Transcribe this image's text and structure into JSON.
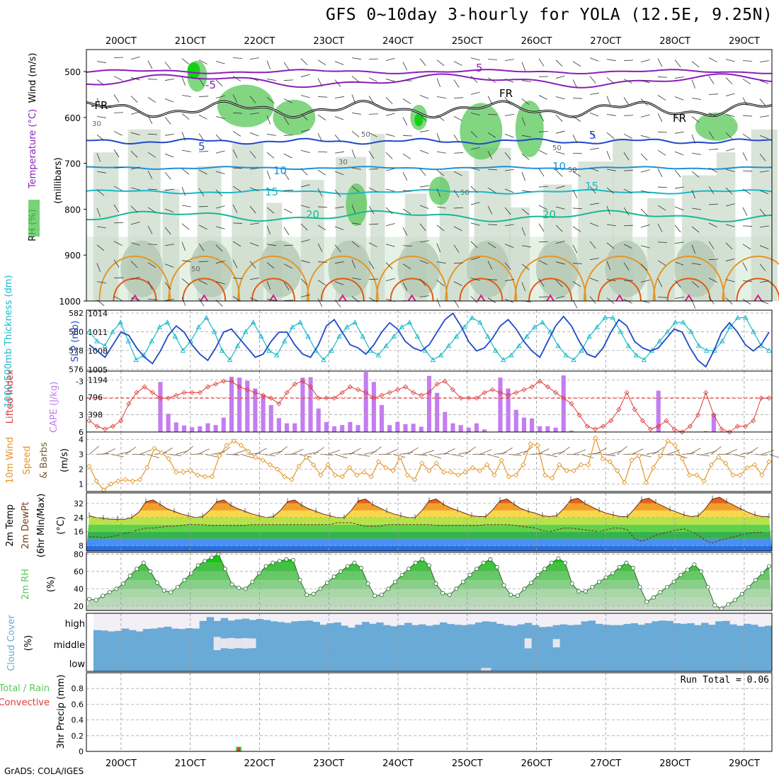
{
  "title": "GFS 0~10day 3-hourly for YOLA (12.5E, 9.25N)",
  "credit": "GrADS: COLA/IGES",
  "colors": {
    "purple": "#8a1fb8",
    "black": "#000000",
    "blue": "#1f48c8",
    "lightblue": "#1e90d8",
    "cyan": "#19b8c8",
    "teal": "#19b896",
    "orange": "#e3962a",
    "darkorange": "#e05a10",
    "magenta": "#d81a8a",
    "rhgreen": "#58c858",
    "cloud": "#6aaad6",
    "red": "#e03a3a"
  },
  "chart_data": [
    {
      "type": "contour",
      "panel": "upper-air",
      "ylabel": "(millibars)",
      "ylabel_parts": {
        "rh": "RH (%)",
        "temp": "Temperature (°C)",
        "wind": "Wind (m/s)"
      },
      "xlabels": [
        "20OCT",
        "21OCT",
        "22OCT",
        "23OCT",
        "24OCT",
        "25OCT",
        "26OCT",
        "27OCT",
        "28OCT",
        "29OCT"
      ],
      "yticks": [
        500,
        600,
        700,
        800,
        900,
        1000
      ],
      "series": [
        {
          "name": "5",
          "color": "purple",
          "level_mb": 500
        },
        {
          "name": "-5",
          "color": "purple",
          "level_mb": 520
        },
        {
          "name": "FR",
          "color": "black",
          "level_mb": 582
        },
        {
          "name": "5",
          "color": "blue",
          "level_mb": 652
        },
        {
          "name": "10",
          "color": "lightblue",
          "level_mb": 710
        },
        {
          "name": "15",
          "color": "cyan",
          "level_mb": 762
        },
        {
          "name": "20",
          "color": "teal",
          "level_mb": 815
        }
      ],
      "rh_labels": [
        "30",
        "50",
        "50",
        "50",
        "50",
        "50",
        "30"
      ]
    },
    {
      "type": "line",
      "panel": "thickness-slp",
      "ylabel_left": "1000-500mb Thickness (dm)",
      "ylabel_right": "SLP (mb)",
      "yticks_left": [
        576,
        578,
        580,
        582
      ],
      "yticks_right": [
        1005,
        1008,
        1011,
        1014
      ],
      "x": [
        "20OCT",
        "21OCT",
        "22OCT",
        "23OCT",
        "24OCT",
        "25OCT",
        "26OCT",
        "27OCT",
        "28OCT",
        "29OCT"
      ],
      "thickness_dm": [
        580,
        579,
        578.5,
        580,
        581,
        579,
        577,
        577.5,
        579,
        580.5,
        581,
        579.5,
        578,
        579,
        580.5,
        581.5,
        580,
        578,
        577,
        578.5,
        580,
        581,
        579.5,
        578,
        577.5,
        579,
        580.5,
        581,
        579.5,
        578,
        577,
        578,
        579.5,
        580.5,
        581,
        579.5,
        578,
        577.5,
        578.5,
        579.5,
        580.5,
        581,
        579.5,
        578,
        577,
        577.5,
        578.5,
        579.5,
        580.5,
        581.5,
        581,
        579.5,
        578,
        577,
        577.5,
        578.5,
        579.5,
        580.5,
        581,
        580,
        578.5,
        577.5,
        577,
        578,
        579.5,
        580.5,
        581.5,
        581.5,
        580,
        578.5,
        577.5,
        577,
        578,
        579,
        580,
        581,
        581,
        580,
        578.5,
        578,
        578,
        579,
        580.5,
        581.5,
        581.5,
        580,
        578.5,
        578
      ],
      "slp_mb": [
        1009,
        1008,
        1007,
        1009,
        1011,
        1010.5,
        1008.5,
        1007,
        1006,
        1008,
        1010.5,
        1012,
        1011,
        1009,
        1007.5,
        1006.5,
        1008.5,
        1011,
        1011.5,
        1010,
        1008.5,
        1007,
        1007.5,
        1009.5,
        1011,
        1011,
        1009,
        1007.5,
        1007,
        1009,
        1012,
        1013,
        1011,
        1009,
        1008.5,
        1007.5,
        1009,
        1011,
        1012.5,
        1011.5,
        1009.5,
        1008.5,
        1008,
        1009,
        1011,
        1013,
        1014,
        1012,
        1009.5,
        1008,
        1008.5,
        1010,
        1012,
        1013,
        1011.5,
        1009.5,
        1008,
        1007,
        1009.5,
        1012,
        1013.5,
        1012,
        1009.5,
        1007.5,
        1007,
        1008.5,
        1011,
        1013,
        1012,
        1009.5,
        1008.5,
        1008,
        1008.5,
        1010,
        1011.5,
        1011,
        1008.5,
        1006.5,
        1005.5,
        1008,
        1011,
        1012.5,
        1011,
        1009,
        1008,
        1009,
        1011
      ]
    },
    {
      "type": "bar",
      "panel": "cape-li",
      "ylabel_left": "Lifted Index",
      "ylabel_right": "CAPE (J/kg)",
      "yticks_left": [
        "-3",
        "0",
        "3",
        "6"
      ],
      "yticks_right": [
        398,
        796,
        1194
      ],
      "cape": [
        0,
        0,
        0,
        0,
        0,
        0,
        0,
        0,
        0,
        1150,
        420,
        220,
        150,
        110,
        130,
        200,
        160,
        330,
        1270,
        1250,
        1180,
        1000,
        860,
        620,
        320,
        200,
        200,
        1250,
        1260,
        540,
        230,
        130,
        160,
        230,
        160,
        1380,
        1150,
        620,
        160,
        230,
        180,
        190,
        120,
        1290,
        900,
        460,
        200,
        160,
        100,
        200,
        60,
        0,
        1250,
        1000,
        510,
        330,
        310,
        130,
        130,
        100,
        1300,
        30,
        0,
        0,
        0,
        0,
        0,
        0,
        0,
        0,
        0,
        0,
        950,
        0,
        0,
        0,
        0,
        0,
        20,
        420,
        0,
        0,
        0,
        0,
        0,
        0,
        0
      ],
      "lifted_index": [
        4,
        5,
        5.5,
        5,
        4,
        1,
        -1,
        -2,
        -1,
        0,
        0,
        -0.5,
        -1,
        -1,
        -1,
        -2,
        -2.5,
        -3,
        -3,
        -2,
        -1.5,
        -1,
        -0.5,
        0,
        1,
        -1,
        -2.5,
        -3,
        -2,
        0,
        0,
        0,
        -1,
        -2,
        -1.5,
        -1,
        0,
        -0.5,
        -1,
        -1.5,
        -2,
        -1,
        -0.5,
        -1,
        -2.5,
        -3,
        -1.5,
        0,
        0,
        0,
        -1,
        -1.5,
        -1,
        -0.5,
        -1,
        -1.5,
        -2,
        -3,
        -2,
        -1,
        0,
        1,
        3,
        5,
        5.5,
        5,
        4,
        2,
        -1,
        2,
        4,
        5.5,
        5,
        4,
        5.5,
        6,
        5,
        3,
        -1,
        3,
        5.5,
        6,
        5,
        5,
        4,
        0,
        0
      ]
    },
    {
      "type": "line",
      "panel": "wind10m",
      "ylabel": "10m Wind Speed & Barbs (m/s)",
      "yticks": [
        1,
        2,
        3,
        4
      ],
      "speed": [
        2.2,
        1.2,
        0.6,
        1,
        1.2,
        1.3,
        1.2,
        1.3,
        2.1,
        3.4,
        3.1,
        2.7,
        1.8,
        1.8,
        1.9,
        1.6,
        1.5,
        1.5,
        2.9,
        3.6,
        3.9,
        3.6,
        3.2,
        2.8,
        2.6,
        2.3,
        2,
        1.5,
        1.3,
        2.2,
        2.8,
        2.3,
        1.6,
        2.3,
        1.6,
        1.5,
        2.1,
        1.6,
        1.8,
        1.5,
        2.5,
        2.1,
        1.9,
        2.8,
        1.6,
        1.3,
        2.4,
        1.9,
        2.4,
        1.8,
        1.8,
        1.6,
        1.8,
        2.1,
        1.9,
        2.3,
        1.6,
        2.6,
        1.5,
        1.6,
        2.3,
        3.7,
        3.6,
        1.6,
        1.4,
        2.3,
        1.9,
        1.9,
        2.3,
        2.3,
        4.1,
        2.7,
        2.5,
        1.9,
        1.1,
        2.6,
        2.9,
        1.1,
        2.1,
        2.9,
        3.9,
        3.6,
        2.7,
        1.6,
        1.6,
        1.2,
        2.3,
        2.8,
        2.4,
        1.6,
        1.6,
        2.1,
        2.3,
        1.6,
        2.5
      ]
    },
    {
      "type": "area",
      "panel": "temp2m",
      "ylabel": "2m Temp 2m DewPt (6hr Min/Max) (°C)",
      "yticks": [
        8,
        16,
        24,
        32
      ],
      "temp": [
        25,
        24,
        23.5,
        23,
        23,
        23,
        24,
        27,
        33,
        34,
        31.5,
        29,
        27.5,
        26,
        25,
        24,
        24.5,
        28,
        33,
        34,
        31,
        29,
        27.5,
        26,
        25,
        24,
        24.5,
        28,
        33,
        34,
        31,
        29,
        27.5,
        26,
        25,
        24,
        24,
        28,
        33.5,
        34.5,
        31.5,
        29.5,
        27.5,
        26,
        25,
        24,
        24,
        28,
        33.5,
        34.5,
        31.5,
        29.5,
        28,
        26.5,
        25,
        24.5,
        24.5,
        28.5,
        33.5,
        34.5,
        31.5,
        29,
        27.5,
        26.5,
        25,
        24.5,
        25,
        29,
        34,
        35,
        32,
        30,
        28,
        26.5,
        25.5,
        24.5,
        24.5,
        29,
        34,
        35,
        32.5,
        30.5,
        28.5,
        27,
        25.5,
        24.5,
        25,
        29,
        34.5,
        35.5,
        33,
        31,
        29,
        27,
        25.5,
        24.5,
        24.5
      ],
      "dewpt": [
        13,
        13,
        12.5,
        13,
        14,
        15,
        16,
        17,
        18,
        18,
        18.5,
        19,
        19,
        19.5,
        20,
        20,
        20,
        19.5,
        19.5,
        19.5,
        19.5,
        19.5,
        19.5,
        20,
        20,
        20,
        20,
        20,
        20,
        20,
        20,
        20,
        20,
        20,
        20,
        21,
        21,
        21,
        20,
        19,
        19,
        19,
        20,
        20,
        20,
        20,
        20,
        20,
        20,
        19.5,
        19.5,
        19.5,
        19.5,
        19.5,
        19.5,
        19.5,
        20,
        20,
        20,
        20,
        19.5,
        19,
        18.5,
        18,
        16.5,
        16,
        17,
        18,
        18,
        17.5,
        17,
        16.5,
        16,
        17,
        18,
        18,
        17,
        12,
        10.5,
        12,
        14,
        15,
        16,
        17,
        17.5,
        16,
        14,
        11,
        9.5,
        11,
        12,
        13,
        14,
        15,
        15.5,
        15.5
      ]
    },
    {
      "type": "area",
      "panel": "rh2m",
      "ylabel": "2m RH (%)",
      "yticks": [
        20,
        40,
        60,
        80
      ],
      "rh": [
        28,
        27,
        32,
        36,
        40,
        46,
        55,
        63,
        70,
        60,
        47,
        38,
        36,
        42,
        50,
        58,
        67,
        72,
        76,
        80,
        63,
        45,
        41,
        40,
        48,
        58,
        66,
        70,
        72,
        74,
        73,
        50,
        33,
        34,
        40,
        47,
        54,
        60,
        66,
        70,
        64,
        46,
        32,
        33,
        40,
        48,
        56,
        63,
        70,
        74,
        67,
        46,
        35,
        33,
        40,
        48,
        56,
        63,
        70,
        74,
        65,
        44,
        33,
        32,
        40,
        47,
        56,
        63,
        70,
        75,
        70,
        46,
        37,
        37,
        42,
        48,
        53,
        58,
        65,
        70,
        64,
        42,
        25,
        30,
        36,
        42,
        48,
        56,
        62,
        68,
        60,
        42,
        21,
        17,
        22,
        27,
        34,
        42,
        50,
        58,
        66
      ],
      "ylim": [
        15,
        82
      ]
    },
    {
      "type": "heatmap",
      "panel": "cloud",
      "ylabel": "Cloud Cover (%)",
      "row_labels": [
        "high",
        "middle",
        "low"
      ],
      "high": [
        12,
        10,
        5,
        8,
        20,
        12,
        5,
        18,
        20,
        25,
        30,
        20,
        18,
        22,
        20,
        60,
        80,
        60,
        75,
        62,
        68,
        72,
        65,
        70,
        65,
        58,
        54,
        50,
        58,
        60,
        62,
        55,
        40,
        48,
        52,
        35,
        25,
        40,
        55,
        45,
        52,
        38,
        32,
        38,
        50,
        38,
        42,
        35,
        40,
        52,
        44,
        40,
        38,
        42,
        52,
        58,
        55,
        45,
        38,
        35,
        42,
        50,
        38,
        28,
        30,
        38,
        42,
        38,
        40,
        58,
        62,
        45,
        40,
        38,
        38,
        44,
        48,
        40,
        48,
        58,
        62,
        60,
        48,
        45,
        48,
        38,
        50,
        40,
        58,
        60,
        42,
        35,
        45,
        40,
        30,
        35
      ],
      "middle": [
        0,
        0,
        0,
        0,
        0,
        0,
        0,
        0,
        0,
        0,
        0,
        0,
        0,
        0,
        0,
        0,
        0,
        95,
        70,
        78,
        70,
        75,
        70,
        0,
        0,
        0,
        0,
        0,
        0,
        0,
        0,
        0,
        0,
        0,
        0,
        0,
        0,
        0,
        0,
        0,
        0,
        0,
        0,
        0,
        0,
        0,
        0,
        0,
        0,
        0,
        0,
        0,
        0,
        0,
        0,
        0,
        0,
        0,
        0,
        0,
        0,
        72,
        0,
        0,
        0,
        60,
        0,
        0,
        0,
        0,
        0,
        0,
        0,
        0,
        0,
        0,
        0,
        0,
        0,
        0,
        0,
        0,
        0,
        0,
        0,
        0,
        0,
        0,
        0,
        0,
        0,
        0,
        0,
        0,
        0,
        0
      ],
      "low": [
        0,
        0,
        0,
        0,
        0,
        0,
        0,
        0,
        0,
        0,
        0,
        0,
        0,
        0,
        0,
        0,
        0,
        0,
        0,
        0,
        0,
        0,
        0,
        0,
        0,
        0,
        0,
        0,
        0,
        0,
        0,
        0,
        0,
        0,
        0,
        0,
        0,
        0,
        0,
        0,
        0,
        0,
        0,
        0,
        0,
        0,
        0,
        0,
        0,
        0,
        0,
        0,
        0,
        0,
        0,
        0,
        0,
        0,
        0,
        0,
        0,
        0,
        0,
        0,
        0,
        0,
        0,
        0,
        0,
        0,
        0,
        0,
        0,
        0,
        0,
        0,
        0,
        0,
        0,
        0,
        0,
        0,
        0,
        0,
        0,
        0,
        0,
        0,
        0,
        0,
        0,
        0,
        0,
        0,
        0,
        0
      ]
    },
    {
      "type": "bar",
      "panel": "precip",
      "ylabel": "3hr Precip (mm)",
      "ylabel_parts": {
        "total": "Total / Rain",
        "conv": "Convective"
      },
      "yticks": [
        0,
        0.2,
        0.4,
        0.6,
        0.8
      ],
      "ylim": [
        0,
        1
      ],
      "annotation": "Run Total = 0.06",
      "bars": [
        {
          "x_day": 21.7,
          "total": 0.06,
          "convective": 0.05
        }
      ],
      "xlabels": [
        "20OCT",
        "21OCT",
        "22OCT",
        "23OCT",
        "24OCT",
        "25OCT",
        "26OCT",
        "27OCT",
        "28OCT",
        "29OCT"
      ]
    }
  ]
}
